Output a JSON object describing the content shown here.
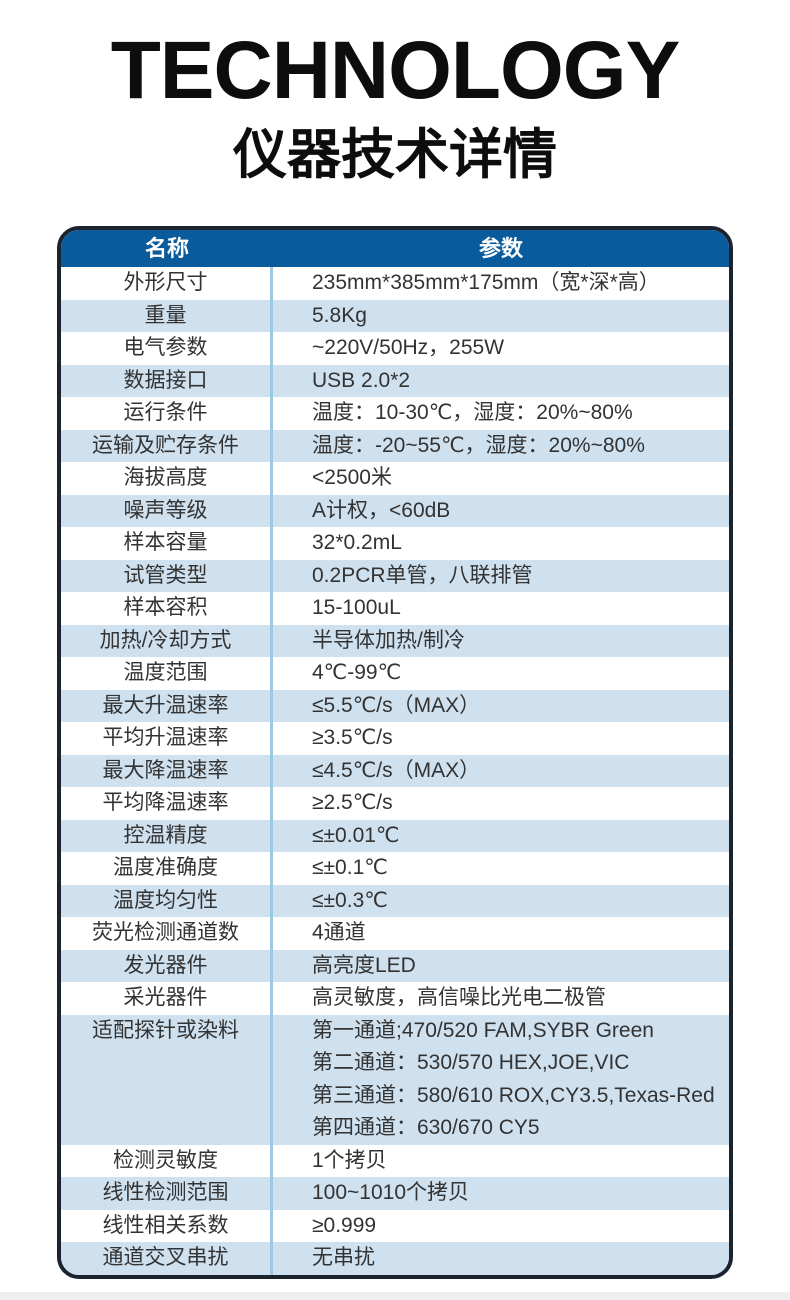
{
  "page": {
    "title": "TECHNOLOGY",
    "subtitle": "仪器技术详情"
  },
  "colors": {
    "header_bg": "#0a5b9c",
    "row_alt_bg": "#cfe0ee",
    "column_divider": "#9ec9e2",
    "table_border": "#1a232e",
    "footer_bar": "#eeeeee"
  },
  "table": {
    "headers": [
      "名称",
      "参数"
    ],
    "rows": [
      {
        "name": "外形尺寸",
        "value": "235mm*385mm*175mm（宽*深*高）"
      },
      {
        "name": "重量",
        "value": "5.8Kg"
      },
      {
        "name": "电气参数",
        "value": "~220V/50Hz，255W"
      },
      {
        "name": "数据接口",
        "value": "USB 2.0*2"
      },
      {
        "name": "运行条件",
        "value": "温度：10-30℃，湿度：20%~80%"
      },
      {
        "name": "运输及贮存条件",
        "value": "温度：-20~55℃，湿度：20%~80%"
      },
      {
        "name": "海拔高度",
        "value": "<2500米"
      },
      {
        "name": "噪声等级",
        "value": "A计权，<60dB"
      },
      {
        "name": "样本容量",
        "value": "32*0.2mL"
      },
      {
        "name": "试管类型",
        "value": "0.2PCR单管，八联排管"
      },
      {
        "name": "样本容积",
        "value": "15-100uL"
      },
      {
        "name": "加热/冷却方式",
        "value": "半导体加热/制冷"
      },
      {
        "name": "温度范围",
        "value": "4℃-99℃"
      },
      {
        "name": "最大升温速率",
        "value": "≤5.5℃/s（MAX）"
      },
      {
        "name": "平均升温速率",
        "value": "≥3.5℃/s"
      },
      {
        "name": "最大降温速率",
        "value": "≤4.5℃/s（MAX）"
      },
      {
        "name": "平均降温速率",
        "value": "≥2.5℃/s"
      },
      {
        "name": "控温精度",
        "value": "≤±0.01℃"
      },
      {
        "name": "温度准确度",
        "value": "≤±0.1℃"
      },
      {
        "name": "温度均匀性",
        "value": "≤±0.3℃"
      },
      {
        "name": "荧光检测通道数",
        "value": "4通道"
      },
      {
        "name": "发光器件",
        "value": "高亮度LED"
      },
      {
        "name": "采光器件",
        "value": "高灵敏度，高信噪比光电二极管"
      },
      {
        "name": "适配探针或染料",
        "value_lines": [
          "第一通道;470/520 FAM,SYBR Green",
          "第二通道：530/570 HEX,JOE,VIC",
          "第三通道：580/610 ROX,CY3.5,Texas-Red",
          "第四通道：630/670 CY5"
        ]
      },
      {
        "name": "检测灵敏度",
        "value": "1个拷贝"
      },
      {
        "name": "线性检测范围",
        "value": "100~1010个拷贝"
      },
      {
        "name": "线性相关系数",
        "value": "≥0.999"
      },
      {
        "name": "通道交叉串扰",
        "value": "无串扰"
      }
    ]
  }
}
